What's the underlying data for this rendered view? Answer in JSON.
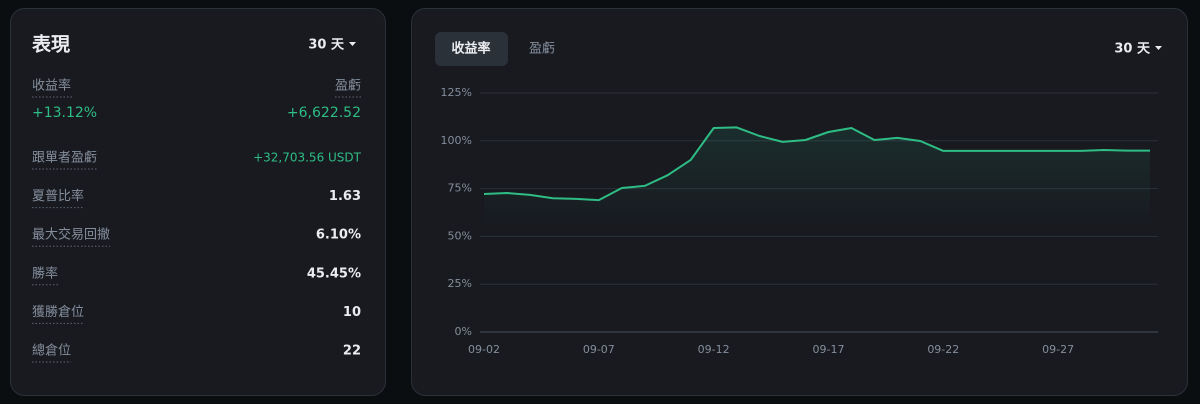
{
  "panel": {
    "title": "表現",
    "period": "30 天",
    "return_label": "收益率",
    "pnl_label": "盈虧",
    "return_value": "+13.12%",
    "pnl_value": "+6,622.52",
    "metrics": [
      {
        "label": "跟單者盈虧",
        "value": "+32,703.56 USDT"
      },
      {
        "label": "夏普比率",
        "value": "1.63"
      },
      {
        "label": "最大交易回撤",
        "value": "6.10%"
      },
      {
        "label": "勝率",
        "value": "45.45%"
      },
      {
        "label": "獲勝倉位",
        "value": "10"
      },
      {
        "label": "總倉位",
        "value": "22"
      }
    ]
  },
  "tabs": [
    "收益率",
    "盈虧"
  ],
  "chart_period": "30 天",
  "chart_data": {
    "type": "line",
    "categories": [
      "09-02",
      null,
      null,
      null,
      null,
      "09-07",
      null,
      null,
      null,
      null,
      "09-12",
      null,
      null,
      null,
      null,
      "09-17",
      null,
      null,
      null,
      null,
      "09-22",
      null,
      null,
      null,
      null,
      "09-27",
      null,
      null,
      null,
      null
    ],
    "series": [
      {
        "name": "收益率",
        "color": "#2ebd85",
        "values": [
          72.2,
          72.7,
          71.7,
          70,
          69.6,
          69,
          75.3,
          76.4,
          82,
          90,
          106.7,
          107,
          102.5,
          99.4,
          100.4,
          104.6,
          106.7,
          100.4,
          101.5,
          99.9,
          94.7,
          94.7,
          94.7,
          94.7,
          94.7,
          94.7,
          94.7,
          95.2,
          94.9,
          94.9
        ]
      }
    ],
    "ylim": [
      0,
      125
    ],
    "yticks": [
      {
        "value": 0,
        "label": "0%"
      },
      {
        "value": 25,
        "label": "25%"
      },
      {
        "value": 50,
        "label": "50%"
      },
      {
        "value": 75,
        "label": "75%"
      },
      {
        "value": 100,
        "label": "100%"
      },
      {
        "value": 125,
        "label": "125%"
      }
    ],
    "grid": true
  }
}
